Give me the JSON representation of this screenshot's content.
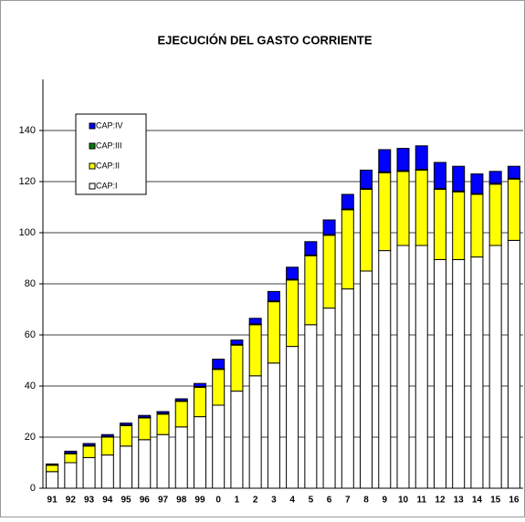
{
  "chart_data": {
    "type": "bar",
    "stacked": true,
    "title": "EJECUCIÓN DEL GASTO CORRIENTE",
    "categories": [
      "91",
      "92",
      "93",
      "94",
      "95",
      "96",
      "97",
      "98",
      "99",
      "0",
      "1",
      "2",
      "3",
      "4",
      "5",
      "6",
      "7",
      "8",
      "9",
      "10",
      "11",
      "12",
      "13",
      "14",
      "15",
      "16"
    ],
    "series": [
      {
        "name": "CAP:I",
        "color": "#ffffff",
        "values": [
          6.5,
          10,
          12,
          13,
          16.5,
          19,
          21,
          24,
          28,
          32.5,
          38,
          44,
          49,
          55.5,
          64,
          70.5,
          78,
          85,
          93,
          95,
          95,
          89.5,
          89.5,
          90.5,
          95,
          97
        ]
      },
      {
        "name": "CAP:II",
        "color": "#ffff00",
        "values": [
          2.5,
          3.5,
          4.5,
          7,
          8,
          8.5,
          8,
          10,
          11.5,
          14,
          18,
          20,
          24,
          26,
          27,
          28.5,
          31,
          32,
          30.5,
          29,
          29.5,
          27.5,
          26.5,
          24.5,
          24,
          24
        ]
      },
      {
        "name": "CAP:III",
        "color": "#008000",
        "values": [
          0.3,
          0.3,
          0.3,
          0.3,
          0.3,
          0.3,
          0.3,
          0.3,
          0.3,
          0.3,
          0.3,
          0.3,
          0.3,
          0.3,
          0.3,
          0.3,
          0.3,
          0.3,
          0.3,
          0.3,
          0.3,
          0.3,
          0.3,
          0.3,
          0.3,
          0.3
        ]
      },
      {
        "name": "CAP:IV",
        "color": "#0000ff",
        "values": [
          0.2,
          0.7,
          0.7,
          0.7,
          0.7,
          0.7,
          0.7,
          0.7,
          1.2,
          3.7,
          1.7,
          2.2,
          3.7,
          4.7,
          5.2,
          5.7,
          5.7,
          7.2,
          8.7,
          8.7,
          9.2,
          10.2,
          9.7,
          7.7,
          4.7,
          4.7
        ]
      }
    ],
    "ylim": [
      0,
      160
    ],
    "yticks": [
      0,
      20,
      40,
      60,
      80,
      100,
      120,
      140
    ],
    "grid": true
  }
}
